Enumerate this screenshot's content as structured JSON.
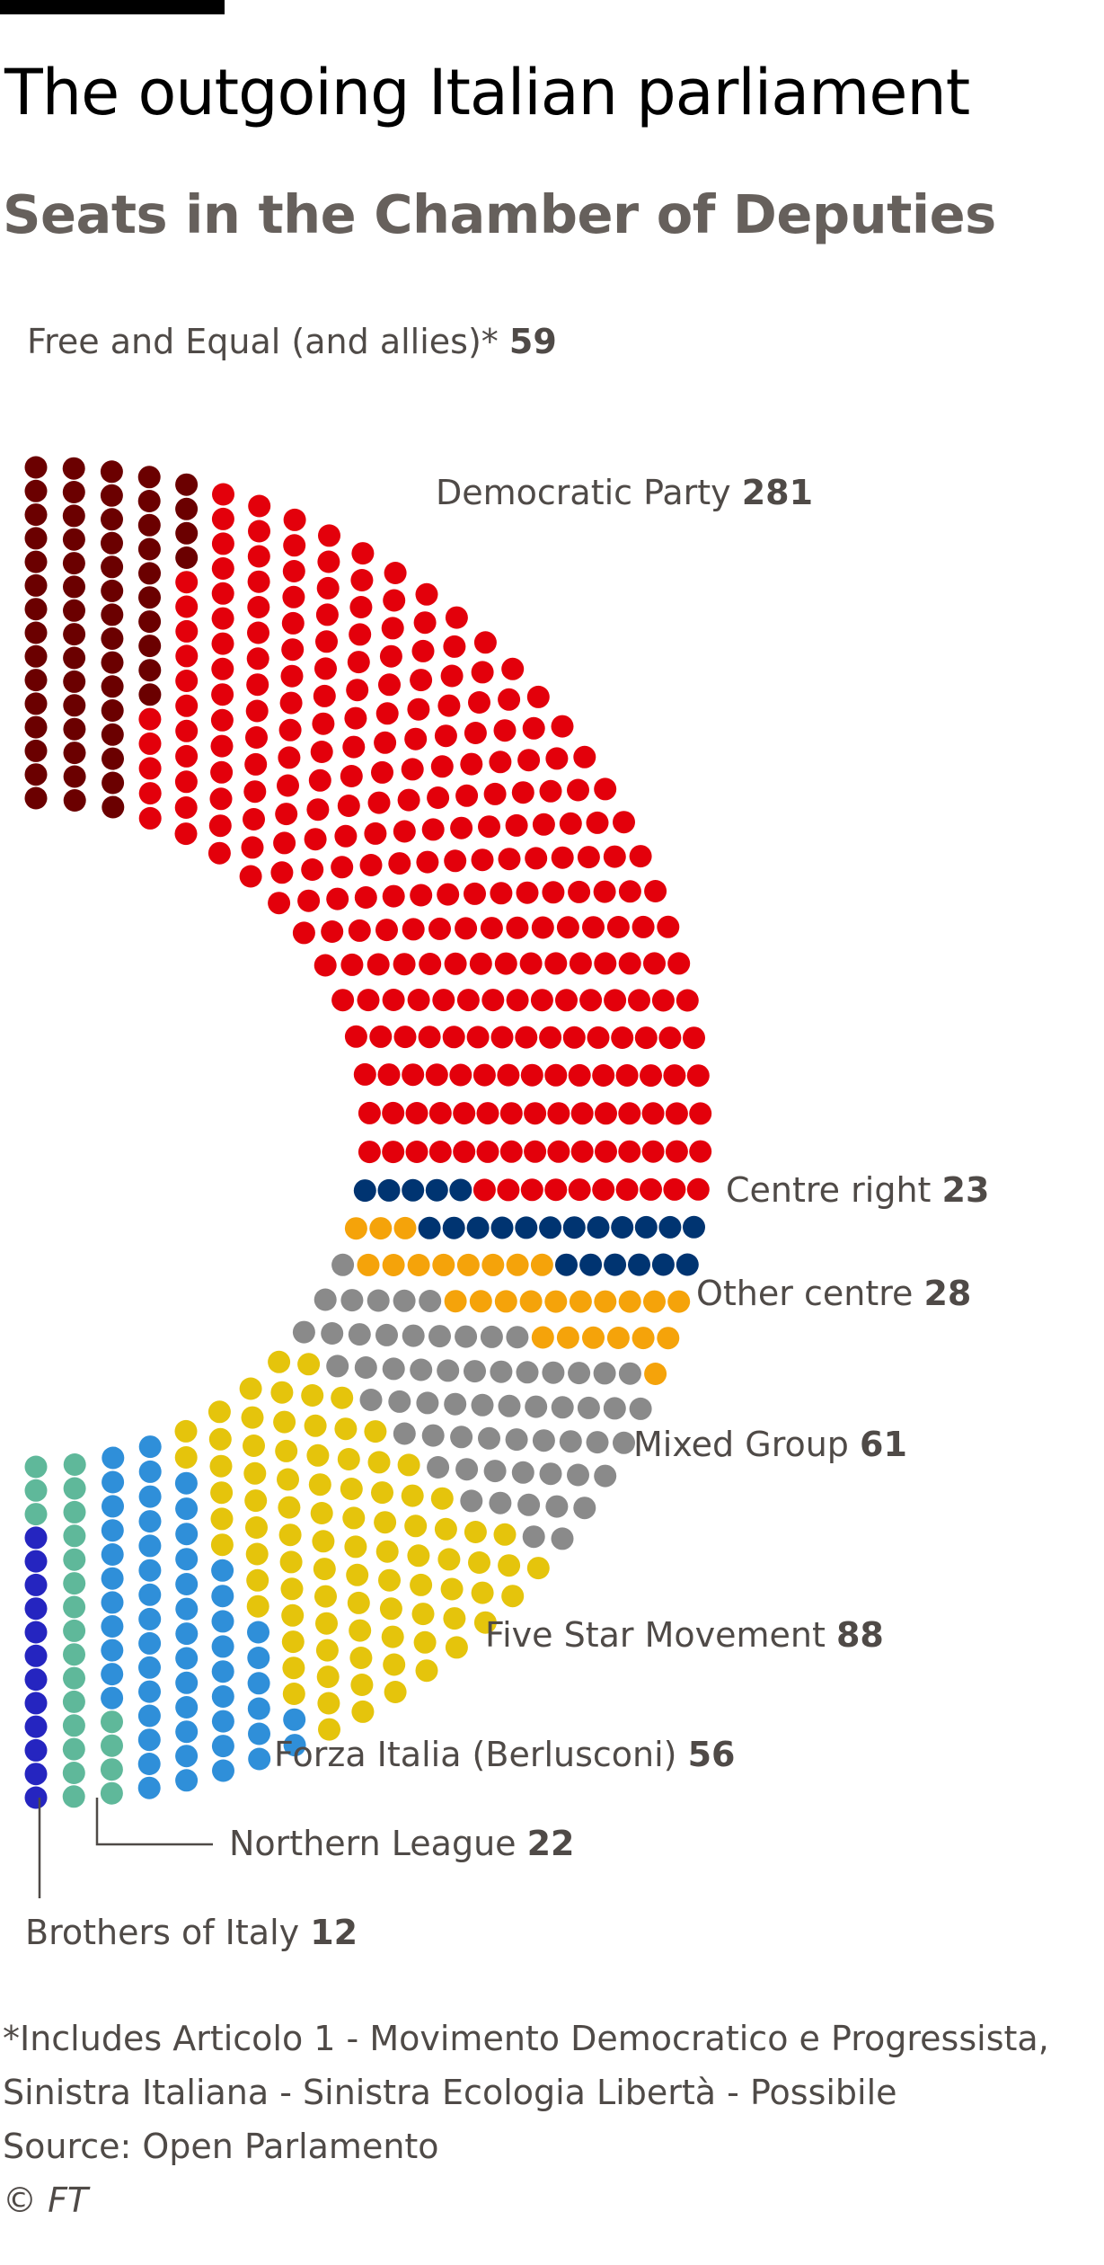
{
  "title": "The outgoing Italian parliament",
  "subtitle": "Seats in the Chamber of Deputies",
  "chart_data": {
    "type": "parliament",
    "total_seats": 630,
    "series": [
      {
        "name": "Free and Equal (and allies)*",
        "value": 59,
        "color": "#6b0000"
      },
      {
        "name": "Democratic Party",
        "value": 281,
        "color": "#e3000b"
      },
      {
        "name": "Centre right",
        "value": 23,
        "color": "#003471"
      },
      {
        "name": "Other centre",
        "value": 28,
        "color": "#f5a30a"
      },
      {
        "name": "Mixed Group",
        "value": 61,
        "color": "#8a8a8a"
      },
      {
        "name": "Five Star Movement",
        "value": 88,
        "color": "#e5c40c"
      },
      {
        "name": "Forza Italia (Berlusconi)",
        "value": 56,
        "color": "#2f8fd9"
      },
      {
        "name": "Northern League",
        "value": 22,
        "color": "#5fb89a"
      },
      {
        "name": "Brothers of Italy",
        "value": 12,
        "color": "#2525c0"
      }
    ]
  },
  "footnote": {
    "line1": "*Includes Articolo 1 - Movimento Democratico e Progressista,",
    "line2": "Sinistra Italiana - Sinistra Ecologia Libertà - Possibile"
  },
  "source": "Source: Open Parlamento",
  "copyright": "© FT"
}
